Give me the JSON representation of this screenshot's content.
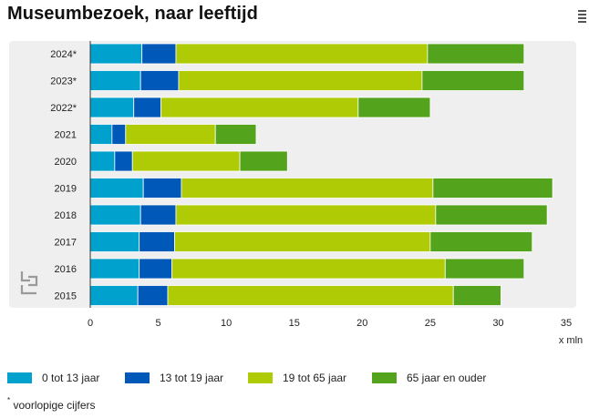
{
  "chart_data": {
    "type": "bar",
    "orientation": "horizontal",
    "stacked": true,
    "title": "Museumbezoek, naar leeftijd",
    "categories": [
      "2024*",
      "2023*",
      "2022*",
      "2021",
      "2020",
      "2019",
      "2018",
      "2017",
      "2016",
      "2015"
    ],
    "series": [
      {
        "name": "0 tot 13 jaar",
        "color": "#00a1cd",
        "values": [
          3.8,
          3.7,
          3.2,
          1.6,
          1.8,
          3.9,
          3.7,
          3.6,
          3.6,
          3.5
        ]
      },
      {
        "name": "13 tot 19 jaar",
        "color": "#0058b8",
        "values": [
          2.5,
          2.8,
          2.0,
          1.0,
          1.3,
          2.8,
          2.6,
          2.6,
          2.4,
          2.2
        ]
      },
      {
        "name": "19 tot 65 jaar",
        "color": "#afcb05",
        "values": [
          18.5,
          17.9,
          14.5,
          6.6,
          7.9,
          18.5,
          19.1,
          18.8,
          20.1,
          21.0
        ]
      },
      {
        "name": "65 jaar en ouder",
        "color": "#53a31d",
        "values": [
          7.1,
          7.5,
          5.3,
          3.0,
          3.5,
          8.8,
          8.2,
          7.5,
          5.8,
          3.5
        ]
      }
    ],
    "xlabel": "x mln",
    "xlim": [
      0,
      35
    ],
    "xticks": [
      0,
      5,
      10,
      15,
      20,
      25,
      30,
      35
    ],
    "legend_position": "bottom",
    "footnote": {
      "mark": "*",
      "text": "voorlopige cijfers"
    }
  },
  "icons": {
    "menu": "menu-icon",
    "logo": "cbs-logo-icon"
  }
}
